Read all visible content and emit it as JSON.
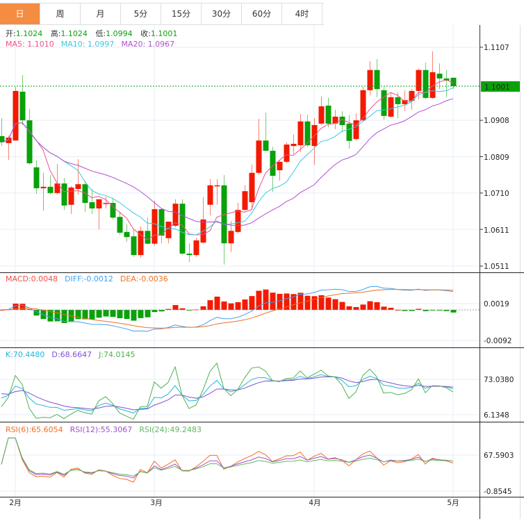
{
  "tabs": [
    "日",
    "周",
    "月",
    "5分",
    "15分",
    "30分",
    "60分",
    "4时"
  ],
  "active_tab": 0,
  "info": {
    "open_label": "开:",
    "open": "1.1024",
    "high_label": "高:",
    "high": "1.1024",
    "low_label": "低:",
    "low": "1.0994",
    "close_label": "收:",
    "close": "1.1001",
    "ma5": "MA5: 1.1010",
    "ma10": "MA10: 1.0997",
    "ma20": "MA20: 1.0967"
  },
  "macd_info": {
    "macd": "MACD:0.0048",
    "diff": "DIFF:-0.0012",
    "dea": "DEA:-0.0036"
  },
  "kdj_info": {
    "k": "K:70.4480",
    "d": "D:68.6647",
    "j": "J:74.0145"
  },
  "rsi_info": {
    "rsi6": "RSI(6):65.6054",
    "rsi12": "RSI(12):55.3067",
    "rsi24": "RSI(24):49.2483"
  },
  "price_axis": [
    "1.1107",
    "1.0908",
    "1.0809",
    "1.0710",
    "1.0611",
    "1.0511"
  ],
  "price_axis_values": [
    1.1107,
    1.0908,
    1.0809,
    1.071,
    1.0611,
    1.0511
  ],
  "current_price": "1.1001",
  "macd_axis": [
    "0.0019",
    "-0.0092"
  ],
  "kdj_axis": [
    "73.0380",
    "6.1348"
  ],
  "rsi_axis": [
    "67.5903",
    "-0.8545"
  ],
  "x_axis": [
    "2月",
    "3月",
    "4月",
    "5月"
  ],
  "x_axis_index": [
    2,
    22,
    45,
    65
  ],
  "colors": {
    "up": "#f21a00",
    "down": "#0aa10a",
    "ma5": "#f0508a",
    "ma10": "#3cc8e0",
    "ma20": "#b050d0",
    "diff": "#3fa0f0",
    "dea": "#f07020",
    "k": "#20b8d8",
    "d": "#8050d0",
    "j": "#50b050",
    "rsi6": "#f07020",
    "rsi12": "#a050d0",
    "rsi24": "#60b860",
    "tab_active": "#f48c42"
  },
  "chart_data": {
    "type": "candlestick",
    "ohlc_order": [
      "open",
      "high",
      "low",
      "close"
    ],
    "ylim": [
      1.0511,
      1.1107
    ],
    "candles": [
      [
        1.0865,
        1.0914,
        1.0838,
        1.0848
      ],
      [
        1.0846,
        1.0867,
        1.08,
        1.0861
      ],
      [
        1.0853,
        1.0999,
        1.0852,
        1.0988
      ],
      [
        1.0986,
        1.1031,
        1.0895,
        1.0908
      ],
      [
        1.0908,
        1.0939,
        1.0787,
        1.0791
      ],
      [
        1.078,
        1.0799,
        1.0708,
        1.0723
      ],
      [
        1.0723,
        1.0765,
        1.0662,
        1.0727
      ],
      [
        1.0727,
        1.0759,
        1.0706,
        1.071
      ],
      [
        1.071,
        1.0789,
        1.0706,
        1.0736
      ],
      [
        1.0736,
        1.0751,
        1.0664,
        1.0676
      ],
      [
        1.0678,
        1.0729,
        1.0653,
        1.0725
      ],
      [
        1.0721,
        1.0802,
        1.0706,
        1.0734
      ],
      [
        1.0734,
        1.0744,
        1.0659,
        1.0683
      ],
      [
        1.0685,
        1.0721,
        1.0653,
        1.0668
      ],
      [
        1.0668,
        1.0693,
        1.0611,
        1.0693
      ],
      [
        1.0681,
        1.07,
        1.0668,
        1.0683
      ],
      [
        1.0683,
        1.0697,
        1.0638,
        1.0643
      ],
      [
        1.0645,
        1.0659,
        1.0596,
        1.0602
      ],
      [
        1.0604,
        1.0625,
        1.0577,
        1.059
      ],
      [
        1.0592,
        1.0611,
        1.0536,
        1.0541
      ],
      [
        1.0541,
        1.0619,
        1.0534,
        1.0607
      ],
      [
        1.0607,
        1.0643,
        1.057,
        1.0572
      ],
      [
        1.0572,
        1.0689,
        1.0566,
        1.0666
      ],
      [
        1.0666,
        1.0668,
        1.0573,
        1.0594
      ],
      [
        1.0587,
        1.0632,
        1.0573,
        1.0632
      ],
      [
        1.0621,
        1.0693,
        1.0617,
        1.0681
      ],
      [
        1.0681,
        1.0693,
        1.0541,
        1.0545
      ],
      [
        1.0545,
        1.0573,
        1.0522,
        1.0541
      ],
      [
        1.0541,
        1.0588,
        1.0536,
        1.0581
      ],
      [
        1.0575,
        1.0698,
        1.0572,
        1.0638
      ],
      [
        1.0678,
        1.0748,
        1.0649,
        1.0731
      ],
      [
        1.0729,
        1.0748,
        1.0678,
        1.0731
      ],
      [
        1.0731,
        1.0759,
        1.0515,
        1.0573
      ],
      [
        1.0573,
        1.0634,
        1.0549,
        1.0607
      ],
      [
        1.0604,
        1.0683,
        1.06,
        1.0664
      ],
      [
        1.0664,
        1.0731,
        1.0662,
        1.0715
      ],
      [
        1.0685,
        1.0787,
        1.0664,
        1.0765
      ],
      [
        1.0765,
        1.0912,
        1.0759,
        1.0853
      ],
      [
        1.0853,
        1.0929,
        1.0825,
        1.0825
      ],
      [
        1.0825,
        1.0836,
        1.0713,
        1.0757
      ],
      [
        1.0772,
        1.08,
        1.0744,
        1.0795
      ],
      [
        1.0795,
        1.0848,
        1.0791,
        1.0842
      ],
      [
        1.0838,
        1.087,
        1.0816,
        1.0844
      ],
      [
        1.084,
        1.0925,
        1.0821,
        1.0905
      ],
      [
        1.0905,
        1.0923,
        1.0836,
        1.084
      ],
      [
        1.0838,
        1.0914,
        1.0787,
        1.0895
      ],
      [
        1.0899,
        1.0973,
        1.0895,
        1.0946
      ],
      [
        1.0948,
        1.0969,
        1.0889,
        1.0899
      ],
      [
        1.0899,
        1.0937,
        1.0884,
        1.0918
      ],
      [
        1.0918,
        1.0933,
        1.0876,
        1.0895
      ],
      [
        1.0899,
        1.0922,
        1.0831,
        1.0852
      ],
      [
        1.0857,
        1.0927,
        1.0853,
        1.0908
      ],
      [
        1.0908,
        1.0999,
        1.0905,
        1.099
      ],
      [
        1.099,
        1.1069,
        1.0976,
        1.1045
      ],
      [
        1.1045,
        1.1075,
        1.0971,
        1.0993
      ],
      [
        1.099,
        1.0999,
        1.091,
        1.092
      ],
      [
        1.0918,
        1.0984,
        1.0916,
        1.0971
      ],
      [
        1.0971,
        1.0984,
        1.0914,
        1.0952
      ],
      [
        1.0952,
        1.099,
        1.0933,
        1.0963
      ],
      [
        1.0961,
        1.0993,
        1.0937,
        1.0988
      ],
      [
        1.0988,
        1.105,
        1.0965,
        1.1045
      ],
      [
        1.1045,
        1.1065,
        1.0965,
        1.0969
      ],
      [
        1.0969,
        1.1096,
        1.0967,
        1.1039
      ],
      [
        1.1035,
        1.1063,
        1.0992,
        1.1022
      ],
      [
        1.1022,
        1.1045,
        1.0971,
        1.1016
      ],
      [
        1.1024,
        1.1024,
        1.0994,
        1.1001
      ]
    ],
    "indicators": [
      "MA5",
      "MA10",
      "MA20",
      "MACD(12,26,9)",
      "KDJ(9,3,3)",
      "RSI(6,12,24)"
    ]
  }
}
